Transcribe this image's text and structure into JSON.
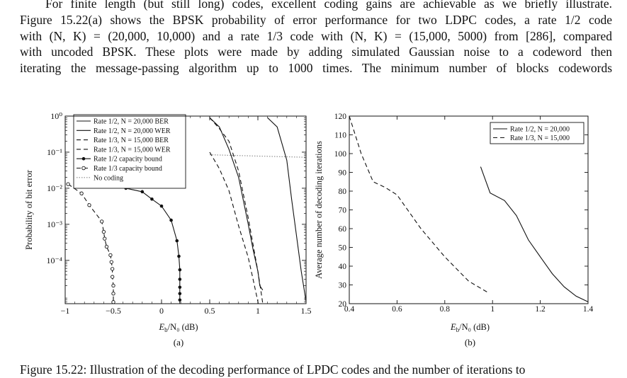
{
  "text": {
    "lines": [
      "For finite length (but still long) codes, excellent coding gains are achievable as we briefly illustrate.",
      "Figure 15.22(a) shows the BPSK probability of error performance for two LDPC codes, a rate 1/2 code",
      "with (N, K) = (20,000, 10,000) and a rate 1/3 code with (N, K) = (15,000, 5000) from [286], compared",
      "with uncoded BPSK. These plots were made by adding simulated Gaussian noise to a codeword then",
      "iterating the message-passing algorithm up to 1000 times. The minimum number of blocks codewords"
    ],
    "caption": "Figure 15.22: Illustration of the decoding performance of LPDC codes and the number of iterations to"
  },
  "chart_data": [
    {
      "type": "line",
      "panel_label": "(a)",
      "xlabel": "Eb/N0 (dB)",
      "ylabel": "Probability of bit error",
      "xlim": [
        -1,
        1.5
      ],
      "ylim_log10": [
        -5.2,
        0
      ],
      "y_scale": "log",
      "x_ticks": [
        -1,
        -0.5,
        0,
        0.5,
        1,
        1.5
      ],
      "x_tick_labels": [
        "−1",
        "−0.5",
        "0",
        "0.5",
        "1",
        "1.5"
      ],
      "y_ticks_exp": [
        0,
        -1,
        -2,
        -3,
        -4
      ],
      "y_tick_labels": [
        "10⁰",
        "10⁻¹",
        "10⁻²",
        "10⁻³",
        "10⁻⁴"
      ],
      "legend_position": "top-left",
      "series": [
        {
          "name": "Rate 1/2, N = 20,000 BER",
          "style": "solid",
          "x": [
            0.5,
            0.6,
            0.7,
            0.8,
            0.9,
            0.95,
            1.0,
            1.02,
            1.05
          ],
          "y": [
            0.9,
            0.5,
            0.12,
            0.02,
            0.001,
            0.0002,
            5e-05,
            2e-05,
            1.5e-05
          ]
        },
        {
          "name": "Rate 1/2, N = 20,000 WER",
          "style": "solid",
          "x": [
            1.1,
            1.2,
            1.3,
            1.35,
            1.4,
            1.45,
            1.5
          ],
          "y": [
            0.9,
            0.5,
            0.06,
            0.005,
            0.0005,
            5e-05,
            7.2e-06
          ]
        },
        {
          "name": "Rate 1/3, N = 15,000 BER",
          "style": "dashed",
          "x": [
            0.5,
            0.6,
            0.7,
            0.8,
            0.9,
            0.95,
            1.0,
            1.02
          ],
          "y": [
            0.1,
            0.035,
            0.0085,
            0.0009,
            0.00012,
            3e-05,
            7.2e-06,
            3.5e-06
          ]
        },
        {
          "name": "Rate 1/3, N = 15,000 WER",
          "style": "dashed",
          "x": [
            0.5,
            0.6,
            0.7,
            0.8,
            0.9,
            1.0,
            1.03,
            1.05
          ],
          "y": [
            0.9,
            0.45,
            0.2,
            0.03,
            0.0015,
            5e-05,
            1.5e-05,
            6.5e-06
          ]
        },
        {
          "name": "Rate 1/2 capacity bound",
          "style": "solid-dot",
          "x": [
            -0.37,
            -0.2,
            -0.1,
            0.0,
            0.1,
            0.16,
            0.18,
            0.19,
            0.19,
            0.19,
            0.19,
            0.19,
            0.19,
            0.19
          ],
          "y": [
            0.01,
            0.008,
            0.005,
            0.0032,
            0.0013,
            0.00035,
            0.00013,
            5.5e-05,
            3e-05,
            1.8e-05,
            1.2e-05,
            8e-06,
            5.5e-06,
            3.8e-06
          ]
        },
        {
          "name": "Rate 1/3 capacity bound",
          "style": "dashed-circle",
          "x": [
            -0.97,
            -0.83,
            -0.75,
            -0.62,
            -0.6,
            -0.59,
            -0.57,
            -0.53,
            -0.52,
            -0.51,
            -0.51,
            -0.5,
            -0.5,
            -0.5,
            -0.5
          ],
          "y": [
            0.013,
            0.0072,
            0.0034,
            0.0012,
            0.00062,
            0.0004,
            0.00024,
            0.00014,
            9e-05,
            5.8e-05,
            3.5e-05,
            2e-05,
            1.2e-05,
            7e-06,
            4.5e-06
          ]
        },
        {
          "name": "No coding",
          "style": "dotted",
          "x": [
            0.5,
            1.0,
            1.5
          ],
          "y": [
            0.085,
            0.078,
            0.072
          ]
        }
      ]
    },
    {
      "type": "line",
      "panel_label": "(b)",
      "xlabel": "Eb/N0 (dB)",
      "ylabel": "Average number of decoding iterations",
      "xlim": [
        0.4,
        1.4
      ],
      "ylim": [
        20,
        120
      ],
      "x_ticks": [
        0.4,
        0.6,
        0.8,
        1,
        1.2,
        1.4
      ],
      "x_tick_labels": [
        "0.4",
        "0.6",
        "0.8",
        "1",
        "1.2",
        "1.4"
      ],
      "y_ticks": [
        20,
        30,
        40,
        50,
        60,
        70,
        80,
        90,
        100,
        110,
        120
      ],
      "y_tick_labels": [
        "20",
        "30",
        "40",
        "50",
        "60",
        "70",
        "80",
        "90",
        "100",
        "110",
        "120"
      ],
      "legend_position": "top-right",
      "series": [
        {
          "name": "Rate 1/2, N = 20,000",
          "style": "solid",
          "x": [
            0.95,
            0.99,
            1.05,
            1.1,
            1.15,
            1.2,
            1.25,
            1.3,
            1.35,
            1.4
          ],
          "y": [
            93,
            79,
            75,
            67,
            54,
            45,
            36,
            29,
            24,
            21
          ]
        },
        {
          "name": "Rate 1/3, N = 15,000",
          "style": "dashed",
          "x": [
            0.4,
            0.45,
            0.5,
            0.55,
            0.6,
            0.7,
            0.8,
            0.9,
            0.98
          ],
          "y": [
            120,
            100,
            85,
            82,
            78,
            60,
            45,
            32,
            26
          ]
        }
      ]
    }
  ]
}
